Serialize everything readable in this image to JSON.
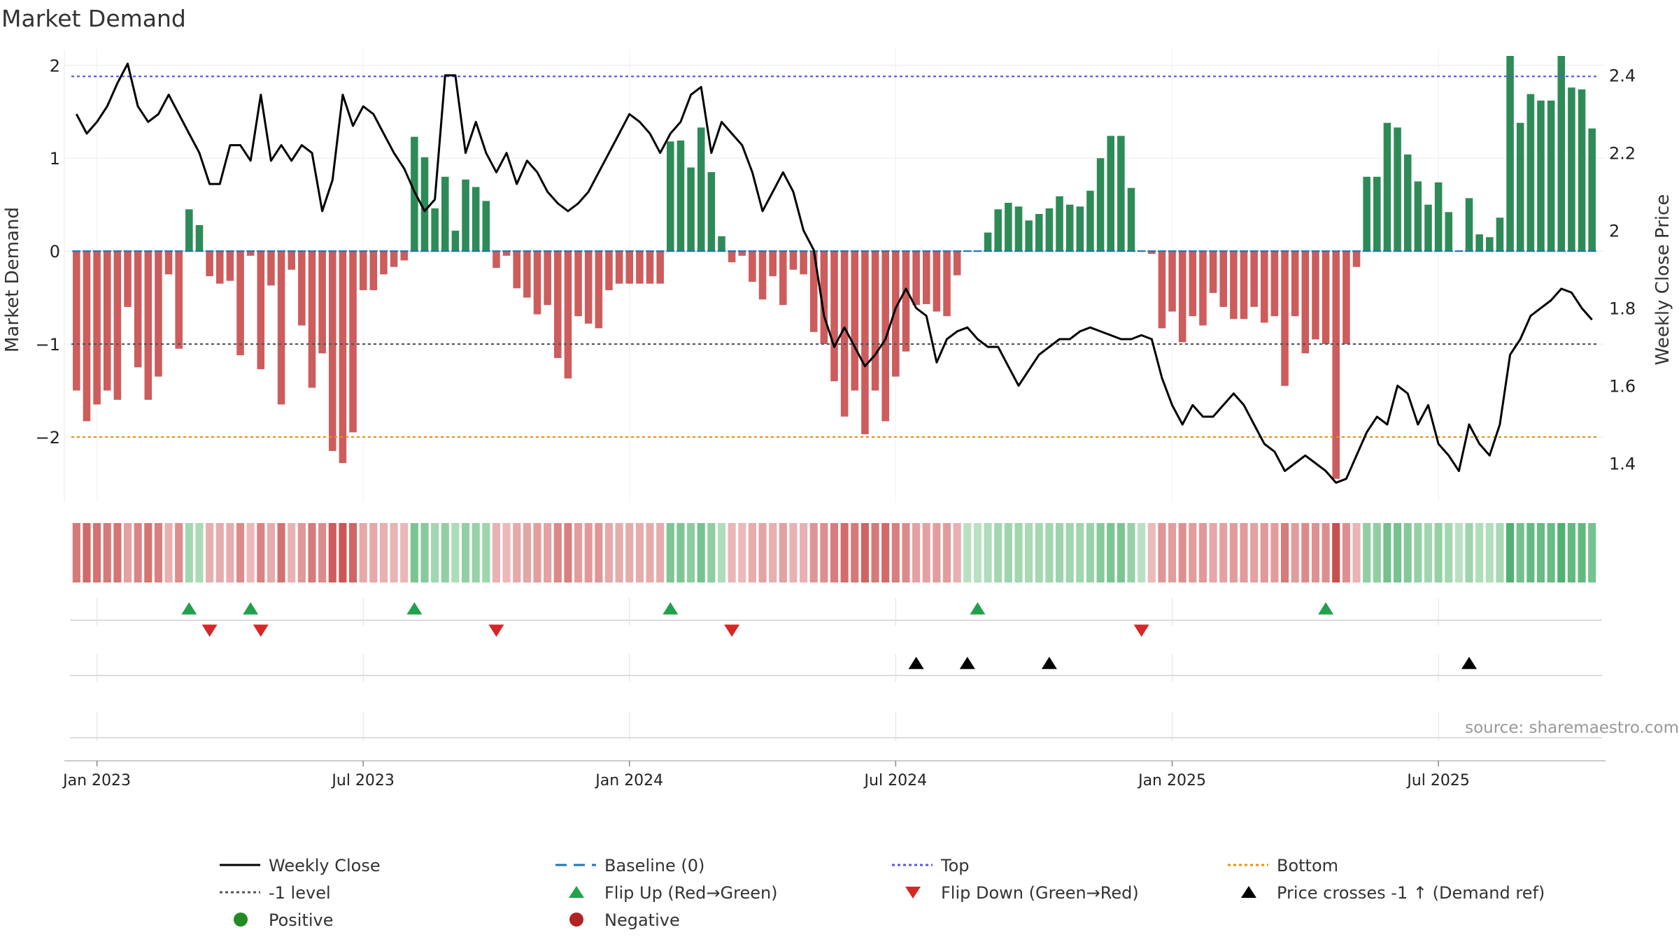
{
  "title": "Market Demand",
  "source": "source: sharemaestro.com",
  "axes": {
    "y_left_label": "Market Demand",
    "y_right_label": "Weekly Close Price",
    "y_left_ticks": [
      {
        "v": 2,
        "label": "2"
      },
      {
        "v": 1,
        "label": "1"
      },
      {
        "v": 0,
        "label": "0"
      },
      {
        "v": -1,
        "label": "−1"
      },
      {
        "v": -2,
        "label": "−2"
      }
    ],
    "y_right_ticks": [
      {
        "v": 2.4,
        "label": "2.4"
      },
      {
        "v": 2.2,
        "label": "2.2"
      },
      {
        "v": 2.0,
        "label": "2"
      },
      {
        "v": 1.8,
        "label": "1.8"
      },
      {
        "v": 1.6,
        "label": "1.6"
      },
      {
        "v": 1.4,
        "label": "1.4"
      }
    ],
    "x_ticks": [
      {
        "week": 2,
        "label": "Jan 2023"
      },
      {
        "week": 28,
        "label": "Jul 2023"
      },
      {
        "week": 54,
        "label": "Jan 2024"
      },
      {
        "week": 80,
        "label": "Jul 2024"
      },
      {
        "week": 107,
        "label": "Jan 2025"
      },
      {
        "week": 133,
        "label": "Jul 2025"
      }
    ]
  },
  "legend": [
    {
      "key": "line-black",
      "label": "Weekly Close"
    },
    {
      "key": "dash-blue",
      "label": "Baseline (0)"
    },
    {
      "key": "dot-purple",
      "label": "Top"
    },
    {
      "key": "dot-orange",
      "label": "Bottom"
    },
    {
      "key": "dot-gray",
      "label": "-1 level"
    },
    {
      "key": "tri-up-green",
      "label": "Flip Up (Red→Green)"
    },
    {
      "key": "tri-down-red",
      "label": "Flip Down (Green→Red)"
    },
    {
      "key": "tri-up-black",
      "label": "Price crosses -1 ↑ (Demand ref)"
    },
    {
      "key": "circle-green",
      "label": "Positive"
    },
    {
      "key": "circle-red",
      "label": "Negative"
    }
  ],
  "colors": {
    "positive": "#2e8b57",
    "negative": "#cd5c5c",
    "price": "#000000",
    "baseline": "#1f77b4",
    "top": "#5a5ad6",
    "bottom": "#e8900c",
    "minus_one": "#555555",
    "flip_up": "#22a04b",
    "flip_down": "#d62728",
    "cross": "#000000",
    "positive_dot": "#228b22",
    "negative_dot": "#b22222"
  },
  "chart_data": {
    "type": "bar",
    "x_unit": "week index from 26 Dec 2022 (week 0) to Oct 2025 (week 145)",
    "demand_ylim": [
      -2.7,
      2.1
    ],
    "price_ylim": [
      1.3,
      2.45
    ],
    "reference_lines": {
      "top": 1.88,
      "baseline": 0,
      "minus_one_level": -1,
      "bottom": -2.0
    },
    "demand": [
      -1.5,
      -1.83,
      -1.65,
      -1.5,
      -1.6,
      -0.6,
      -1.25,
      -1.6,
      -1.35,
      -0.25,
      -1.05,
      0.45,
      0.28,
      -0.27,
      -0.35,
      -0.32,
      -1.12,
      -0.05,
      -1.27,
      -0.37,
      -1.65,
      -0.2,
      -0.8,
      -1.47,
      -1.1,
      -2.15,
      -2.28,
      -1.95,
      -0.42,
      -0.42,
      -0.25,
      -0.17,
      -0.1,
      1.23,
      1.01,
      0.46,
      0.8,
      0.22,
      0.77,
      0.69,
      0.54,
      -0.18,
      -0.05,
      -0.4,
      -0.5,
      -0.68,
      -0.58,
      -1.15,
      -1.37,
      -0.7,
      -0.78,
      -0.83,
      -0.42,
      -0.35,
      -0.35,
      -0.35,
      -0.35,
      -0.35,
      1.18,
      1.19,
      0.9,
      1.33,
      0.85,
      0.16,
      -0.12,
      -0.05,
      -0.33,
      -0.52,
      -0.27,
      -0.58,
      -0.2,
      -0.25,
      -0.87,
      -1.0,
      -1.4,
      -1.78,
      -1.5,
      -1.97,
      -1.5,
      -1.83,
      -1.35,
      -1.08,
      -0.58,
      -0.57,
      -0.65,
      -0.7,
      -0.26,
      0,
      0,
      0.2,
      0.45,
      0.52,
      0.48,
      0.33,
      0.4,
      0.46,
      0.59,
      0.5,
      0.48,
      0.65,
      1.0,
      1.24,
      1.24,
      0.68,
      0,
      -0.03,
      -0.83,
      -0.65,
      -0.98,
      -0.7,
      -0.8,
      -0.45,
      -0.6,
      -0.73,
      -0.73,
      -0.6,
      -0.77,
      -0.7,
      -1.45,
      -0.7,
      -1.1,
      -0.95,
      -1.0,
      -2.45,
      -1.0,
      -0.17,
      0.8,
      0.8,
      1.38,
      1.33,
      1.04,
      0.75,
      0.5,
      0.74,
      0.42,
      0,
      0.57,
      0.18,
      0.15,
      0.36,
      2.1,
      1.38,
      1.69,
      1.62,
      1.62,
      2.1,
      1.76,
      1.74,
      1.32
    ],
    "weekly_close": [
      2.3,
      2.25,
      2.28,
      2.32,
      2.38,
      2.43,
      2.32,
      2.28,
      2.3,
      2.35,
      2.3,
      2.25,
      2.2,
      2.12,
      2.12,
      2.22,
      2.22,
      2.18,
      2.35,
      2.18,
      2.22,
      2.18,
      2.22,
      2.2,
      2.05,
      2.13,
      2.35,
      2.27,
      2.32,
      2.3,
      2.25,
      2.2,
      2.16,
      2.1,
      2.05,
      2.08,
      2.4,
      2.4,
      2.2,
      2.28,
      2.2,
      2.15,
      2.2,
      2.12,
      2.18,
      2.15,
      2.1,
      2.07,
      2.05,
      2.07,
      2.1,
      2.15,
      2.2,
      2.25,
      2.3,
      2.28,
      2.25,
      2.2,
      2.25,
      2.28,
      2.35,
      2.37,
      2.2,
      2.28,
      2.25,
      2.22,
      2.15,
      2.05,
      2.1,
      2.15,
      2.1,
      2.0,
      1.95,
      1.78,
      1.7,
      1.75,
      1.7,
      1.65,
      1.68,
      1.72,
      1.8,
      1.85,
      1.8,
      1.78,
      1.66,
      1.72,
      1.74,
      1.75,
      1.72,
      1.7,
      1.7,
      1.65,
      1.6,
      1.64,
      1.68,
      1.7,
      1.72,
      1.72,
      1.74,
      1.75,
      1.74,
      1.73,
      1.72,
      1.72,
      1.73,
      1.72,
      1.62,
      1.55,
      1.5,
      1.55,
      1.52,
      1.52,
      1.55,
      1.58,
      1.55,
      1.5,
      1.45,
      1.43,
      1.38,
      1.4,
      1.42,
      1.4,
      1.38,
      1.35,
      1.36,
      1.42,
      1.48,
      1.52,
      1.5,
      1.6,
      1.58,
      1.5,
      1.55,
      1.45,
      1.42,
      1.38,
      1.5,
      1.45,
      1.42,
      1.5,
      1.68,
      1.72,
      1.78,
      1.8,
      1.82,
      1.85,
      1.84,
      1.8,
      1.77
    ],
    "flip_up_weeks": [
      11,
      17,
      33,
      58,
      88,
      122
    ],
    "flip_down_weeks": [
      13,
      18,
      41,
      64,
      104
    ],
    "price_crosses_minus1_up_weeks": [
      82,
      87,
      95,
      136
    ]
  }
}
